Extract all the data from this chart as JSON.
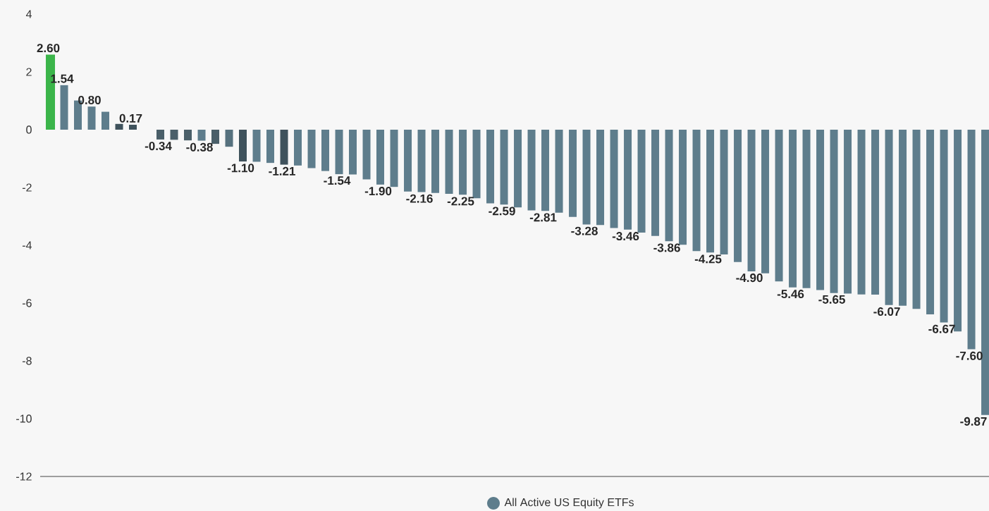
{
  "chart_data": {
    "type": "bar",
    "categories": [
      null,
      null,
      null,
      null,
      null,
      null,
      null,
      null,
      null,
      null,
      null,
      null,
      null,
      null,
      null,
      null,
      null,
      null,
      null,
      null,
      null,
      null,
      null,
      null,
      null,
      null,
      null,
      null,
      null,
      null,
      null,
      null,
      null,
      null,
      null,
      null,
      null,
      null,
      null,
      null,
      null,
      null,
      null,
      null,
      null,
      null,
      null,
      null,
      null,
      null,
      null,
      null,
      null,
      null,
      null,
      null,
      null,
      null,
      null,
      null,
      null,
      null,
      null,
      null,
      null,
      null,
      null,
      null,
      null
    ],
    "series": [
      {
        "color": "#3bb54a",
        "values": [
          2.6,
          null,
          null,
          null,
          null,
          null,
          null,
          null,
          null,
          null,
          null,
          null,
          null,
          null,
          null,
          null,
          null,
          null,
          null,
          null,
          null,
          null,
          null,
          null,
          null,
          null,
          null,
          null,
          null,
          null,
          null,
          null,
          null,
          null,
          null,
          null,
          null,
          null,
          null,
          null,
          null,
          null,
          null,
          null,
          null,
          null,
          null,
          null,
          null,
          null,
          null,
          null,
          null,
          null,
          null,
          null,
          null,
          null,
          null,
          null,
          null,
          null,
          null,
          null,
          null,
          null,
          null,
          null,
          null
        ],
        "value_labels": [
          "2.60",
          null,
          null,
          null,
          null,
          null,
          null,
          null,
          null,
          null,
          null,
          null,
          null,
          null,
          null,
          null,
          null,
          null,
          null,
          null,
          null,
          null,
          null,
          null,
          null,
          null,
          null,
          null,
          null,
          null,
          null,
          null,
          null,
          null,
          null,
          null,
          null,
          null,
          null,
          null,
          null,
          null,
          null,
          null,
          null,
          null,
          null,
          null,
          null,
          null,
          null,
          null,
          null,
          null,
          null,
          null,
          null,
          null,
          null,
          null,
          null,
          null,
          null,
          null,
          null,
          null,
          null,
          null,
          null
        ]
      },
      {
        "name": "All Active US Equity ETFs",
        "color": "#5e7d8c",
        "values": [
          null,
          1.54,
          1.01,
          0.8,
          0.62,
          0.2,
          0.17,
          0,
          -0.34,
          -0.35,
          -0.37,
          -0.38,
          -0.49,
          -0.59,
          -1.1,
          -1.11,
          -1.15,
          -1.21,
          -1.24,
          -1.33,
          -1.43,
          -1.54,
          -1.55,
          -1.72,
          -1.9,
          -1.98,
          -2.14,
          -2.16,
          -2.19,
          -2.22,
          -2.25,
          -2.37,
          -2.55,
          -2.59,
          -2.69,
          -2.79,
          -2.81,
          -2.87,
          -3.02,
          -3.28,
          -3.3,
          -3.4,
          -3.46,
          -3.56,
          -3.68,
          -3.86,
          -3.98,
          -4.2,
          -4.25,
          -4.32,
          -4.58,
          -4.9,
          -4.97,
          -5.25,
          -5.46,
          -5.48,
          -5.55,
          -5.65,
          -5.67,
          -5.7,
          -5.71,
          -6.07,
          -6.09,
          -6.2,
          -6.39,
          -6.67,
          -6.98,
          -7.6,
          -9.87
        ],
        "colors": [
          null,
          "#5e7d8c",
          "#5e7d8c",
          "#5e7d8c",
          "#5e7d8c",
          "#3f525c",
          "#3f525c",
          "#3f525c",
          "#4a5f69",
          "#4a5f69",
          "#4a5f69",
          "#5e7d8c",
          "#4a5f69",
          "#56717e",
          "#3f525c",
          "#5e7d8c",
          "#5e7d8c",
          "#3f525c",
          "#5e7d8c",
          "#5e7d8c",
          "#5e7d8c",
          "#5e7d8c",
          "#5e7d8c",
          "#5e7d8c",
          "#5e7d8c",
          "#5e7d8c",
          "#5e7d8c",
          "#5e7d8c",
          "#5e7d8c",
          "#5e7d8c",
          "#5e7d8c",
          "#5e7d8c",
          "#5e7d8c",
          "#5e7d8c",
          "#5e7d8c",
          "#5e7d8c",
          "#5e7d8c",
          "#5e7d8c",
          "#5e7d8c",
          "#5e7d8c",
          "#5e7d8c",
          "#5e7d8c",
          "#5e7d8c",
          "#5e7d8c",
          "#5e7d8c",
          "#5e7d8c",
          "#5e7d8c",
          "#5e7d8c",
          "#5e7d8c",
          "#5e7d8c",
          "#5e7d8c",
          "#5e7d8c",
          "#5e7d8c",
          "#5e7d8c",
          "#5e7d8c",
          "#5e7d8c",
          "#5e7d8c",
          "#5e7d8c",
          "#5e7d8c",
          "#5e7d8c",
          "#5e7d8c",
          "#5e7d8c",
          "#5e7d8c",
          "#5e7d8c",
          "#5e7d8c",
          "#5e7d8c",
          "#5e7d8c",
          "#5e7d8c",
          "#5e7d8c"
        ],
        "value_labels": [
          null,
          "1.54",
          null,
          "0.80",
          null,
          null,
          "0.17",
          null,
          "-0.34",
          null,
          null,
          "-0.38",
          null,
          null,
          "-1.10",
          null,
          null,
          "-1.21",
          null,
          null,
          null,
          "-1.54",
          null,
          null,
          "-1.90",
          null,
          null,
          "-2.16",
          null,
          null,
          "-2.25",
          null,
          null,
          "-2.59",
          null,
          null,
          "-2.81",
          null,
          null,
          "-3.28",
          null,
          null,
          "-3.46",
          null,
          null,
          "-3.86",
          null,
          null,
          "-4.25",
          null,
          null,
          "-4.90",
          null,
          null,
          "-5.46",
          null,
          null,
          "-5.65",
          null,
          null,
          null,
          "-6.07",
          null,
          null,
          null,
          "-6.67",
          null,
          "-7.60",
          "-9.87"
        ]
      }
    ],
    "ylim": [
      -12,
      4
    ],
    "yticks": [
      -12,
      -10,
      -8,
      -6,
      -4,
      -2,
      0,
      2,
      4
    ],
    "legend": "bottom"
  }
}
